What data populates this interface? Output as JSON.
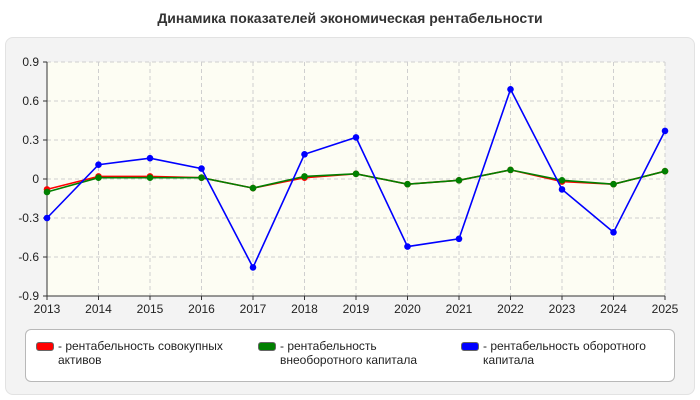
{
  "chart_data": {
    "type": "line",
    "title": "Динамика показателей экономическая рентабельности",
    "x": [
      "2013",
      "2014",
      "2015",
      "2016",
      "2017",
      "2018",
      "2019",
      "2020",
      "2021",
      "2022",
      "2023",
      "2024",
      "2025"
    ],
    "ylim": [
      -0.9,
      0.9
    ],
    "yticks": [
      "0.9",
      "0.6",
      "0.3",
      "0",
      "-0.3",
      "-0.6",
      "-0.9"
    ],
    "grid": true,
    "legend_position": "bottom",
    "series": [
      {
        "name": "- рентабельность совокупных активов",
        "color": "#ff0000",
        "values": [
          -0.08,
          0.02,
          0.02,
          0.01,
          -0.07,
          0.01,
          0.04,
          -0.04,
          -0.01,
          0.07,
          -0.02,
          -0.04,
          0.06
        ]
      },
      {
        "name": "- рентабельность внеоборотного капитала",
        "color": "#008000",
        "values": [
          -0.1,
          0.01,
          0.01,
          0.01,
          -0.07,
          0.02,
          0.04,
          -0.04,
          -0.01,
          0.07,
          -0.01,
          -0.04,
          0.06
        ]
      },
      {
        "name": "- рентабельность оборотного капитала",
        "color": "#0000ff",
        "values": [
          -0.3,
          0.11,
          0.16,
          0.08,
          -0.68,
          0.19,
          0.32,
          -0.52,
          -0.46,
          0.69,
          -0.08,
          -0.41,
          0.37
        ]
      }
    ]
  }
}
